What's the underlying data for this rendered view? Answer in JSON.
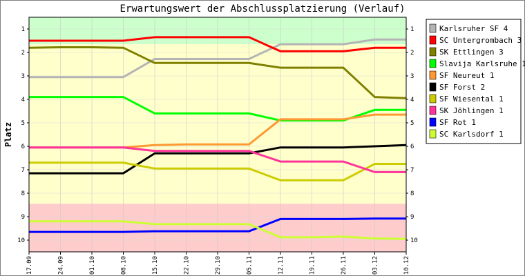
{
  "chart_data": {
    "type": "line",
    "title": "Erwartungswert der Abschlussplatzierung (Verlauf)",
    "ylabel": "Platz",
    "xlabel": "",
    "y_inverted": true,
    "ylim": [
      0.5,
      10.5
    ],
    "y_ticks": [
      "1",
      "2",
      "3",
      "4",
      "5",
      "6",
      "7",
      "8",
      "9",
      "10"
    ],
    "categories": [
      "17.09",
      "24.09",
      "01.10",
      "08.10",
      "15.10",
      "22.10",
      "29.10",
      "05.11",
      "12.11",
      "19.11",
      "26.11",
      "03.12",
      "10.12"
    ],
    "bands": [
      {
        "from": 0.5,
        "to": 1.65,
        "color": "#ccffcc"
      },
      {
        "from": 1.65,
        "to": 8.45,
        "color": "#ffffcc"
      },
      {
        "from": 8.45,
        "to": 10.5,
        "color": "#ffcccc"
      }
    ],
    "legend_position": "right",
    "series": [
      {
        "name": "Karlsruher SF 4",
        "color": "#b4b4b4",
        "values": [
          3.05,
          3.05,
          3.05,
          3.05,
          2.28,
          2.28,
          2.28,
          2.28,
          1.65,
          1.65,
          1.65,
          1.45,
          1.45
        ]
      },
      {
        "name": "SC Untergrombach 3",
        "color": "#ff0000",
        "values": [
          1.5,
          1.5,
          1.5,
          1.5,
          1.35,
          1.35,
          1.35,
          1.35,
          1.95,
          1.95,
          1.95,
          1.8,
          1.8
        ]
      },
      {
        "name": "SK Ettlingen 3",
        "color": "#808000",
        "values": [
          1.8,
          1.78,
          1.78,
          1.8,
          2.45,
          2.45,
          2.45,
          2.45,
          2.65,
          2.65,
          2.65,
          3.9,
          3.95
        ]
      },
      {
        "name": "Slavija Karlsruhe 1",
        "color": "#00ff00",
        "values": [
          3.9,
          3.9,
          3.9,
          3.9,
          4.6,
          4.6,
          4.6,
          4.6,
          4.9,
          4.9,
          4.9,
          4.45,
          4.45
        ]
      },
      {
        "name": "SF Neureut 1",
        "color": "#ff9933",
        "values": [
          6.05,
          6.05,
          6.05,
          6.05,
          5.95,
          5.92,
          5.92,
          5.92,
          4.85,
          4.85,
          4.85,
          4.65,
          4.65
        ]
      },
      {
        "name": "SF Forst 2",
        "color": "#000000",
        "values": [
          7.15,
          7.15,
          7.15,
          7.15,
          6.3,
          6.3,
          6.3,
          6.3,
          6.05,
          6.05,
          6.05,
          6.0,
          5.95
        ]
      },
      {
        "name": "SF Wiesental 1",
        "color": "#cccc00",
        "values": [
          6.7,
          6.7,
          6.7,
          6.7,
          6.95,
          6.95,
          6.95,
          6.95,
          7.45,
          7.45,
          7.45,
          6.75,
          6.75
        ]
      },
      {
        "name": "SK Jöhlingen 1",
        "color": "#ff3399",
        "values": [
          6.05,
          6.05,
          6.05,
          6.05,
          6.2,
          6.2,
          6.2,
          6.2,
          6.65,
          6.65,
          6.65,
          7.1,
          7.1
        ]
      },
      {
        "name": "SF Rot 1",
        "color": "#0000ff",
        "values": [
          9.65,
          9.65,
          9.65,
          9.65,
          9.62,
          9.62,
          9.62,
          9.62,
          9.1,
          9.1,
          9.1,
          9.08,
          9.08
        ]
      },
      {
        "name": "SC Karlsdorf 1",
        "color": "#ccff33",
        "values": [
          9.2,
          9.2,
          9.2,
          9.2,
          9.32,
          9.32,
          9.32,
          9.32,
          9.88,
          9.88,
          9.85,
          9.93,
          9.95
        ]
      }
    ]
  }
}
